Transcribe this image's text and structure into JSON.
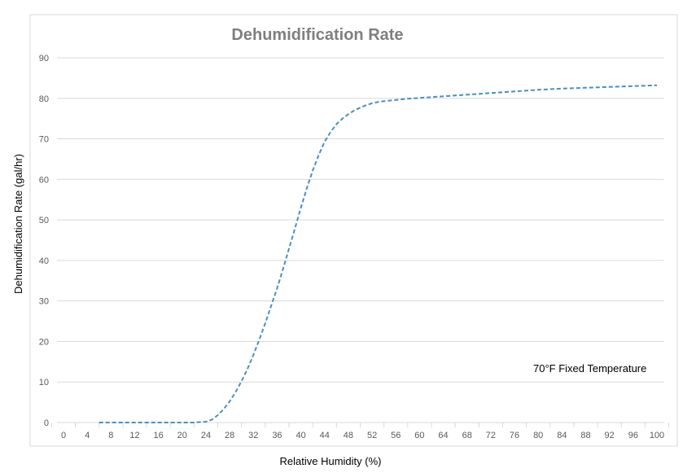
{
  "chart_data": {
    "type": "line",
    "title": "Dehumidification Rate",
    "xlabel": "Relative Humidity (%)",
    "ylabel": "Dehumidification Rate (gal/hr)",
    "xlim": [
      0,
      100
    ],
    "ylim": [
      0,
      90
    ],
    "x_ticks": [
      0,
      4,
      8,
      12,
      16,
      20,
      24,
      28,
      32,
      36,
      40,
      44,
      48,
      52,
      56,
      60,
      64,
      68,
      72,
      76,
      80,
      84,
      88,
      92,
      96,
      100
    ],
    "y_ticks": [
      0,
      10,
      20,
      30,
      40,
      50,
      60,
      70,
      80,
      90
    ],
    "grid": "horizontal",
    "annotation": "70°F Fixed Temperature",
    "series": [
      {
        "line_style": "dashed",
        "color": "#4a8fc2",
        "x": [
          6,
          10,
          14,
          18,
          22,
          24,
          25,
          26,
          27,
          28,
          29,
          30,
          31,
          32,
          33,
          34,
          35,
          36,
          37,
          38,
          39,
          40,
          41,
          42,
          43,
          44,
          45,
          46,
          47,
          48,
          49,
          50,
          51,
          52,
          53,
          54,
          56,
          58,
          60,
          64,
          68,
          72,
          76,
          80,
          84,
          88,
          92,
          96,
          100
        ],
        "y": [
          0,
          0,
          0,
          0,
          0,
          0.2,
          0.7,
          1.8,
          3.3,
          5.2,
          7.5,
          10.2,
          13.2,
          16.7,
          20.5,
          24.5,
          28.8,
          33.1,
          37.9,
          42.9,
          47.9,
          53.0,
          57.8,
          62.2,
          66.0,
          69.3,
          71.7,
          73.6,
          75.0,
          76.1,
          77.0,
          77.7,
          78.3,
          78.8,
          79.1,
          79.3,
          79.6,
          79.9,
          80.1,
          80.5,
          80.9,
          81.3,
          81.7,
          82.1,
          82.4,
          82.6,
          82.8,
          83.0,
          83.2
        ]
      }
    ]
  }
}
